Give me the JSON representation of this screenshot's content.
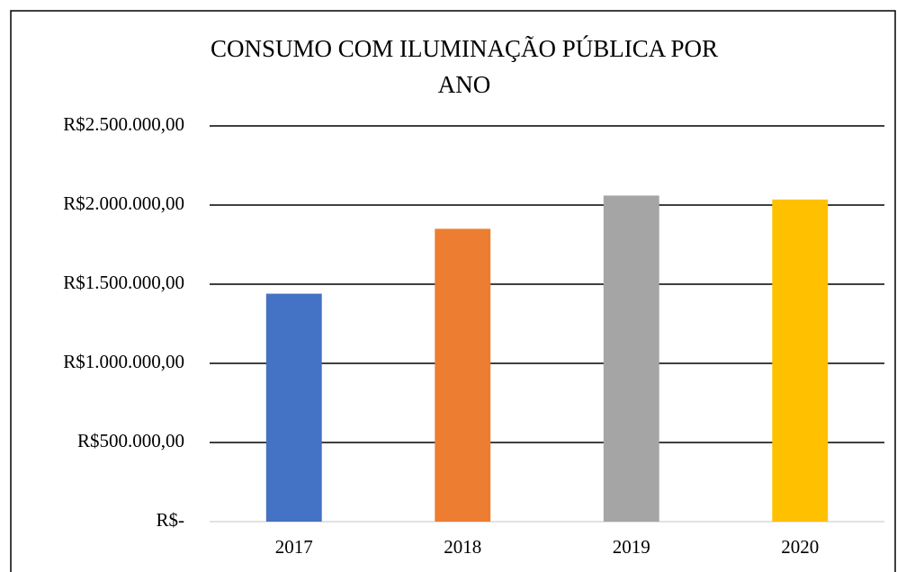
{
  "chart_data": {
    "type": "bar",
    "title": "CONSUMO COM ILUMINAÇÃO PÚBLICA POR ANO",
    "categories": [
      "2017",
      "2018",
      "2019",
      "2020"
    ],
    "values": [
      1440000,
      1850000,
      2060000,
      2035000
    ],
    "colors": [
      "#4472c4",
      "#ed7d31",
      "#a5a5a5",
      "#ffc000"
    ],
    "ylim": [
      0,
      2500000
    ],
    "yticks": [
      {
        "value": 0,
        "label": "R$-"
      },
      {
        "value": 500000,
        "label": "R$500.000,00"
      },
      {
        "value": 1000000,
        "label": "R$1.000.000,00"
      },
      {
        "value": 1500000,
        "label": "R$1.500.000,00"
      },
      {
        "value": 2000000,
        "label": "R$2.000.000,00"
      },
      {
        "value": 2500000,
        "label": "R$2.500.000,00"
      }
    ],
    "grid": true
  }
}
